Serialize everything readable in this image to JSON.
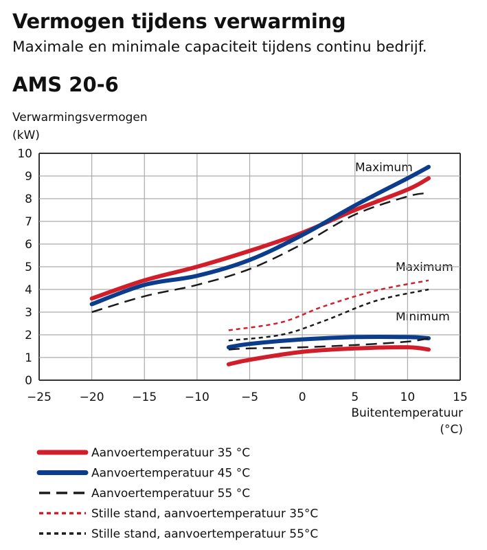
{
  "header": {
    "title": "Vermogen tijdens verwarming",
    "subtitle": "Maximale en minimale capaciteit tijdens continu bedrijf.",
    "model": "AMS 20-6"
  },
  "chart_data": {
    "type": "line",
    "ylabel": "Verwarmingsvermogen\n(kW)",
    "ylabel_lines": [
      "Verwarmingsvermogen",
      "(kW)"
    ],
    "xlabel_lines": [
      "Buitentemperatuur",
      "(°C)"
    ],
    "xlim": [
      -25,
      15
    ],
    "ylim": [
      0,
      10
    ],
    "xticks": [
      -25,
      -20,
      -15,
      -10,
      -5,
      0,
      5,
      10,
      15
    ],
    "yticks": [
      0,
      1,
      2,
      3,
      4,
      5,
      6,
      7,
      8,
      9,
      10
    ],
    "grid": true,
    "annotations": [
      "Maximum",
      "Maximum",
      "Minimum"
    ],
    "legend_position": "bottom",
    "series": [
      {
        "name": "Aanvoertemperatuur 35 °C",
        "color": "#d01f2a",
        "style": "solid",
        "group": "max",
        "x": [
          -20,
          -15,
          -10,
          -5,
          0,
          5,
          10,
          12
        ],
        "y": [
          3.6,
          4.4,
          5.0,
          5.7,
          6.5,
          7.5,
          8.4,
          8.9
        ]
      },
      {
        "name": "Aanvoertemperatuur 45 °C",
        "color": "#0b3d8c",
        "style": "solid",
        "group": "max",
        "x": [
          -20,
          -15,
          -10,
          -5,
          0,
          5,
          10,
          12
        ],
        "y": [
          3.35,
          4.2,
          4.6,
          5.3,
          6.4,
          7.7,
          8.9,
          9.4
        ]
      },
      {
        "name": "Aanvoertemperatuur 55 °C",
        "color": "#1a1a1a",
        "style": "dash",
        "group": "max",
        "x": [
          -20,
          -15,
          -10,
          -5,
          0,
          5,
          10,
          12
        ],
        "y": [
          3.0,
          3.7,
          4.2,
          4.9,
          6.0,
          7.3,
          8.1,
          8.25
        ]
      },
      {
        "name": "Aanvoertemperatuur 35 °C",
        "color": "#d01f2a",
        "style": "solid",
        "group": "min",
        "x": [
          -7,
          -5,
          0,
          5,
          10,
          12
        ],
        "y": [
          0.7,
          0.9,
          1.25,
          1.4,
          1.45,
          1.35
        ]
      },
      {
        "name": "Aanvoertemperatuur 45 °C",
        "color": "#0b3d8c",
        "style": "solid",
        "group": "min",
        "x": [
          -7,
          -5,
          0,
          5,
          10,
          12
        ],
        "y": [
          1.45,
          1.6,
          1.8,
          1.9,
          1.9,
          1.85
        ]
      },
      {
        "name": "Aanvoertemperatuur 55 °C",
        "color": "#1a1a1a",
        "style": "dash",
        "group": "min",
        "x": [
          -7,
          -5,
          0,
          5,
          10,
          12
        ],
        "y": [
          1.35,
          1.4,
          1.45,
          1.55,
          1.7,
          1.85
        ]
      },
      {
        "name": "Stille stand, aanvoertemperatuur 35°C",
        "color": "#d01f2a",
        "style": "dot",
        "x": [
          -7,
          -2,
          2,
          7,
          12
        ],
        "y": [
          2.2,
          2.55,
          3.25,
          3.95,
          4.4
        ]
      },
      {
        "name": "Stille stand, aanvoertemperatuur 55°C",
        "color": "#1a1a1a",
        "style": "dot",
        "x": [
          -7,
          -2,
          2,
          7,
          12
        ],
        "y": [
          1.75,
          2.0,
          2.6,
          3.5,
          4.0
        ]
      }
    ],
    "legend": [
      "Aanvoertemperatuur 35 °C",
      "Aanvoertemperatuur 45 °C",
      "Aanvoertemperatuur 55 °C",
      "Stille stand, aanvoertemperatuur 35°C",
      "Stille stand, aanvoertemperatuur 55°C"
    ],
    "legend_styles": [
      {
        "color": "#d01f2a",
        "style": "solid"
      },
      {
        "color": "#0b3d8c",
        "style": "solid"
      },
      {
        "color": "#1a1a1a",
        "style": "dash"
      },
      {
        "color": "#d01f2a",
        "style": "dot"
      },
      {
        "color": "#1a1a1a",
        "style": "dot"
      }
    ]
  }
}
